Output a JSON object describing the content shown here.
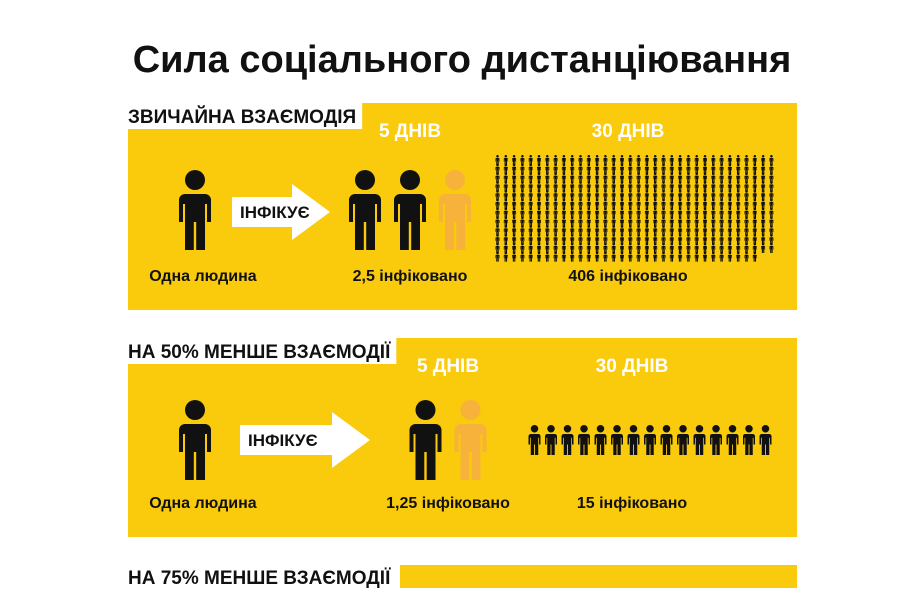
{
  "title": "Сила соціального дистанціювання",
  "sections": [
    {
      "label": "ЗВИЧАЙНА ВЗАЄМОДІЯ",
      "source": "Одна людина",
      "arrow": "ІНФІКУЄ",
      "periods": [
        {
          "heading": "5 ДНІВ",
          "infected": {
            "value": 2.5,
            "label": "2,5"
          },
          "unit": "інфіковано"
        },
        {
          "heading": "30 ДНІВ",
          "infected": 406,
          "unit": "інфіковано"
        }
      ]
    },
    {
      "label": "НА 50% МЕНШЕ ВЗАЄМОДІЇ",
      "source": "Одна людина",
      "arrow": "ІНФІКУЄ",
      "periods": [
        {
          "heading": "5 ДНІВ",
          "infected": {
            "value": 1.25,
            "label": "1,25"
          },
          "unit": "інфіковано"
        },
        {
          "heading": "30 ДНІВ",
          "infected": 15,
          "unit": "інфіковано"
        }
      ]
    },
    {
      "label": "НА 75% МЕНШЕ ВЗАЄМОДІЇ"
    }
  ]
}
